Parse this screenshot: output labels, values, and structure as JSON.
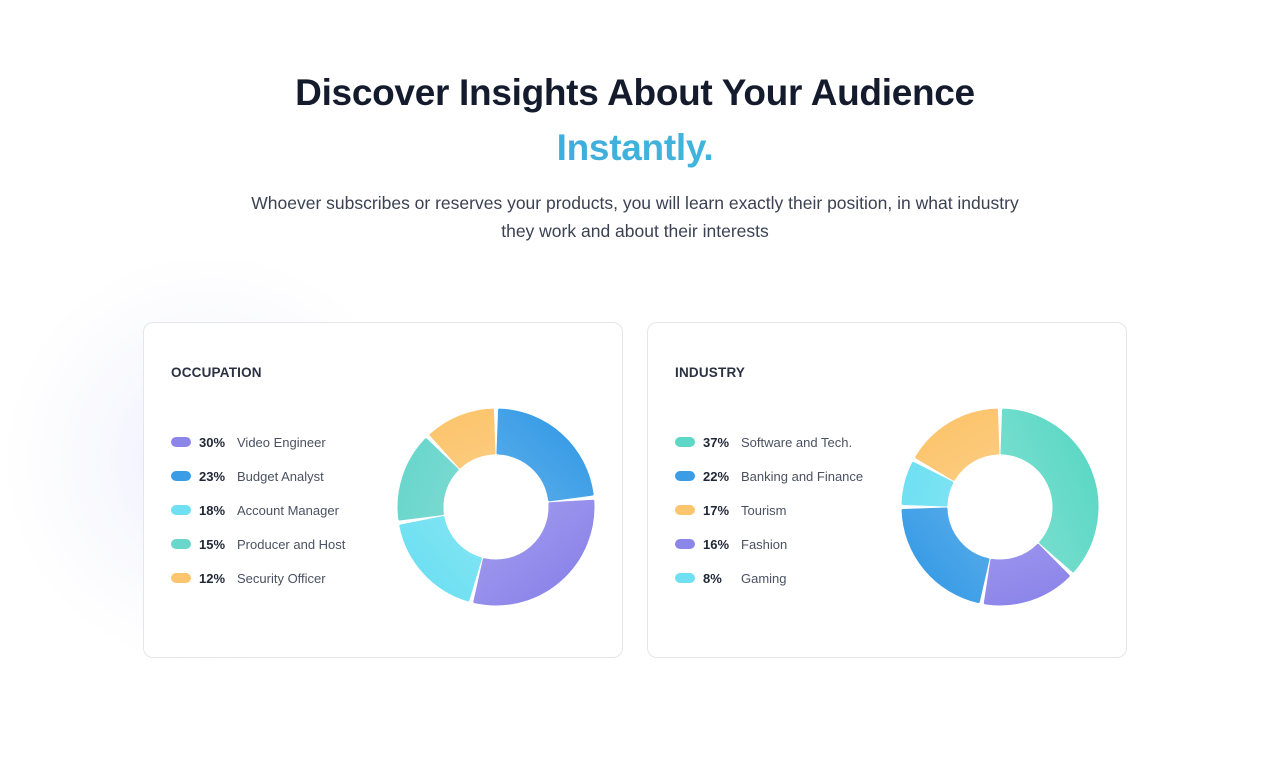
{
  "hero": {
    "headline": "Discover Insights About Your Audience",
    "accent": "Instantly.",
    "lede": "Whoever subscribes or reserves your products, you will learn exactly their position, in what industry they work and about their interests"
  },
  "chart_data": [
    {
      "type": "pie",
      "title": "OCCUPATION",
      "categories": [
        "Video Engineer",
        "Budget Analyst",
        "Account Manager",
        "Producer and Host",
        "Security Officer"
      ],
      "values": [
        30,
        23,
        18,
        15,
        12
      ],
      "value_labels": [
        "30%",
        "23%",
        "18%",
        "15%",
        "12%"
      ],
      "colors": [
        "#8d86ea",
        "#3b9de6",
        "#6fe0f2",
        "#6ad6cc",
        "#fcc56e"
      ],
      "slice_order": [
        1,
        0,
        2,
        3,
        4
      ],
      "legend": "left"
    },
    {
      "type": "pie",
      "title": "INDUSTRY",
      "categories": [
        "Software and Tech.",
        "Banking and Finance",
        "Tourism",
        "Fashion",
        "Gaming"
      ],
      "values": [
        37,
        22,
        17,
        16,
        8
      ],
      "value_labels": [
        "37%",
        "22%",
        "17%",
        "16%",
        "8%"
      ],
      "colors": [
        "#5ed8c6",
        "#3b9de6",
        "#fcc56e",
        "#8d86ea",
        "#6fe0f2"
      ],
      "slice_order": [
        0,
        3,
        1,
        4,
        2
      ],
      "legend": "left"
    }
  ]
}
